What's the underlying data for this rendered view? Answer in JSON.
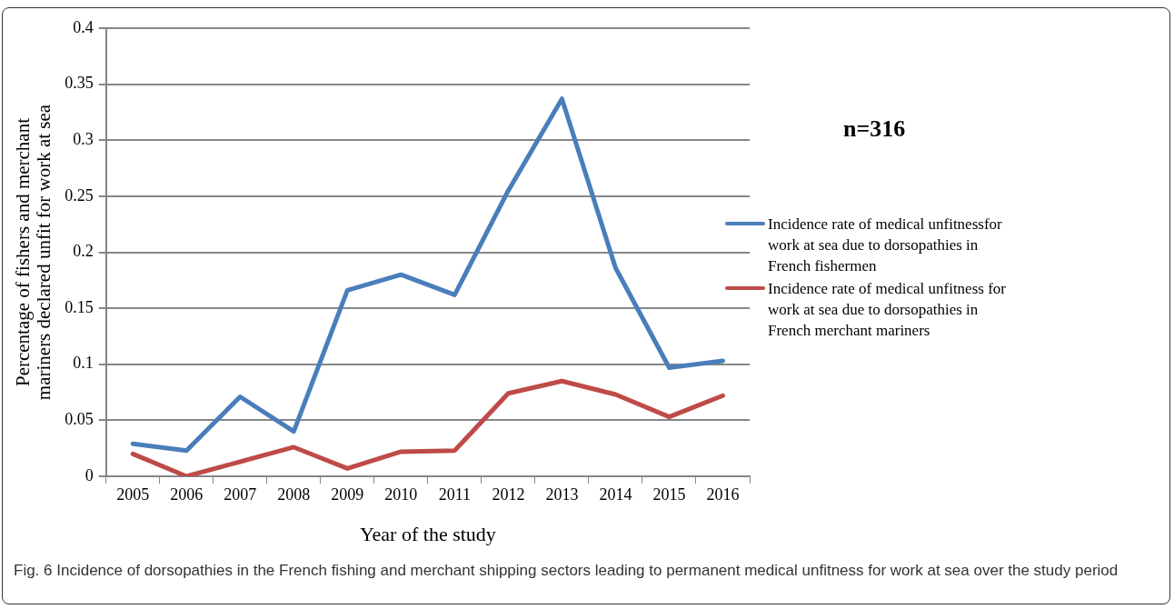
{
  "chart_data": {
    "type": "line",
    "xlabel": "Year of the study",
    "ylabel": "Percentage of fishers and merchant mariners declared unfit for work at sea",
    "categories": [
      "2005",
      "2006",
      "2007",
      "2008",
      "2009",
      "2010",
      "2011",
      "2012",
      "2013",
      "2014",
      "2015",
      "2016"
    ],
    "series": [
      {
        "name": "Incidence rate of medical unfitnessfor work at sea due to dorsopathies in French fishermen",
        "color": "#4a7ebb",
        "values": [
          0.029,
          0.023,
          0.071,
          0.04,
          0.166,
          0.18,
          0.162,
          0.255,
          0.337,
          0.186,
          0.097,
          0.103
        ]
      },
      {
        "name": "Incidence rate of medical unfitness for work at sea due to dorsopathies in French merchant mariners",
        "color": "#be4b48",
        "values": [
          0.02,
          0,
          0.013,
          0.026,
          0.007,
          0.022,
          0.023,
          0.074,
          0.085,
          0.073,
          0.053,
          0.072
        ]
      }
    ],
    "ylim": [
      0,
      0.4
    ],
    "yticks": [
      0,
      0.05,
      0.1,
      0.15,
      0.2,
      0.25,
      0.3,
      0.35,
      0.4
    ],
    "grid": "y",
    "legend": "right",
    "marker": "none",
    "line_style": "solid",
    "annotations": [
      "n=316",
      "Fig. 6 Incidence of dorsopathies in the French fishing and merchant shipping sectors leading to permanent medical unfitness for work at sea over the study period"
    ]
  }
}
